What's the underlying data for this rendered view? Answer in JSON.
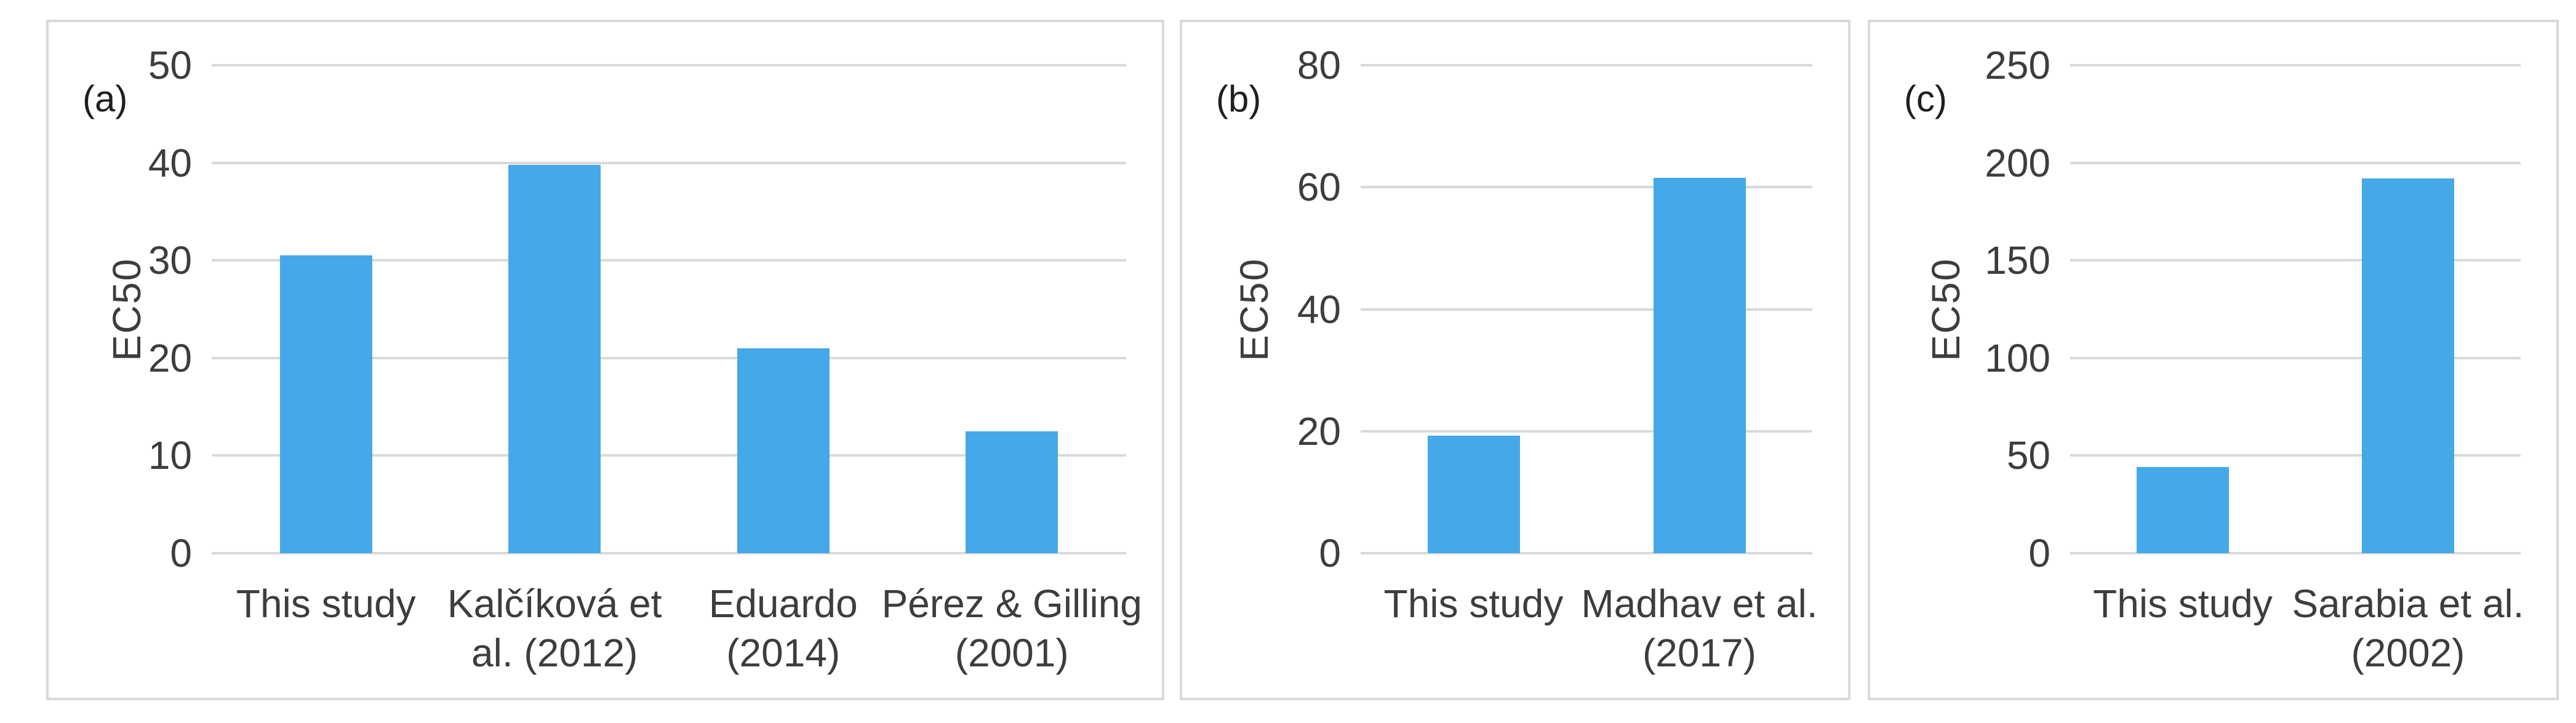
{
  "figure": {
    "background": "#ffffff",
    "border_color": "#d9d9d9"
  },
  "chart_data": [
    {
      "type": "bar",
      "panel_label": "(a)",
      "title": "",
      "xlabel": "",
      "ylabel": "EC50",
      "categories": [
        "This study",
        "Kalčíková et\nal. (2012)",
        "Eduardo\n(2014)",
        "Pérez & Gilling\n(2001)"
      ],
      "values": [
        30.5,
        39.8,
        21.0,
        12.5
      ],
      "ylim": [
        0,
        50
      ],
      "ytick_step": 10,
      "yticks": [
        0,
        10,
        20,
        30,
        40,
        50
      ],
      "grid": true,
      "legend": false,
      "bar_color": "#45a8e8",
      "gridline_color": "#d9d9d9"
    },
    {
      "type": "bar",
      "panel_label": "(b)",
      "title": "",
      "xlabel": "",
      "ylabel": "EC50",
      "categories": [
        "This study",
        "Madhav et al.\n(2017)"
      ],
      "values": [
        19.3,
        61.5
      ],
      "ylim": [
        0,
        80
      ],
      "ytick_step": 20,
      "yticks": [
        0,
        20,
        40,
        60,
        80
      ],
      "grid": true,
      "legend": false,
      "bar_color": "#45a8e8",
      "gridline_color": "#d9d9d9"
    },
    {
      "type": "bar",
      "panel_label": "(c)",
      "title": "",
      "xlabel": "",
      "ylabel": "EC50",
      "categories": [
        "This study",
        "Sarabia et al.\n(2002)"
      ],
      "values": [
        44,
        192
      ],
      "ylim": [
        0,
        250
      ],
      "ytick_step": 50,
      "yticks": [
        0,
        50,
        100,
        150,
        200,
        250
      ],
      "grid": true,
      "legend": false,
      "bar_color": "#45a8e8",
      "gridline_color": "#d9d9d9"
    }
  ]
}
